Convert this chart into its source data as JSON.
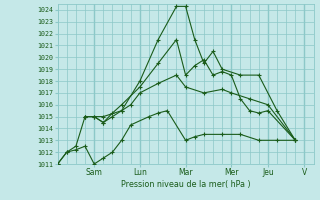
{
  "xlabel": "Pression niveau de la mer( hPa )",
  "bg_color": "#c5e8e8",
  "grid_color": "#8cc8c8",
  "line_color": "#1a5c1a",
  "ylim": [
    1011,
    1024.5
  ],
  "yticks": [
    1011,
    1012,
    1013,
    1014,
    1015,
    1016,
    1017,
    1018,
    1019,
    1020,
    1021,
    1022,
    1023,
    1024
  ],
  "xlim": [
    0,
    14
  ],
  "day_ticks": [
    2.0,
    4.5,
    7.0,
    9.5,
    11.5,
    13.5
  ],
  "day_labels": [
    "Sam",
    "Lun",
    "Mar",
    "Mer",
    "Jeu",
    "V"
  ],
  "vlines": [
    2.0,
    4.5,
    7.0,
    9.5,
    11.5,
    13.5
  ],
  "lines": [
    {
      "x": [
        0.0,
        0.5,
        1.0,
        1.5,
        2.5,
        3.5,
        4.5,
        5.5,
        6.5,
        7.0,
        7.5,
        8.0,
        8.5,
        9.0,
        10.0,
        11.0,
        12.0,
        13.0
      ],
      "y": [
        1011.0,
        1012.0,
        1012.5,
        1015.0,
        1015.0,
        1015.5,
        1018.0,
        1021.5,
        1024.3,
        1024.3,
        1021.5,
        1019.5,
        1020.5,
        1019.0,
        1018.5,
        1018.5,
        1015.5,
        1013.0
      ]
    },
    {
      "x": [
        0.0,
        0.5,
        1.0,
        1.5,
        2.0,
        2.5,
        3.0,
        3.5,
        4.0,
        5.0,
        5.5,
        6.0,
        7.0,
        7.5,
        8.0,
        9.0,
        10.0,
        11.0,
        12.0,
        13.0
      ],
      "y": [
        1011.0,
        1012.0,
        1012.2,
        1012.5,
        1011.0,
        1011.5,
        1012.0,
        1013.0,
        1014.3,
        1015.0,
        1015.3,
        1015.5,
        1013.0,
        1013.3,
        1013.5,
        1013.5,
        1013.5,
        1013.0,
        1013.0,
        1013.0
      ]
    },
    {
      "x": [
        1.5,
        2.0,
        2.5,
        3.0,
        3.5,
        4.0,
        4.5,
        5.5,
        6.5,
        7.0,
        8.0,
        9.0,
        9.5,
        10.5,
        11.5,
        13.0
      ],
      "y": [
        1015.0,
        1015.0,
        1014.5,
        1015.0,
        1015.5,
        1016.0,
        1017.0,
        1017.8,
        1018.5,
        1017.5,
        1017.0,
        1017.3,
        1017.0,
        1016.5,
        1016.0,
        1013.0
      ]
    },
    {
      "x": [
        1.5,
        2.0,
        2.5,
        3.0,
        3.5,
        4.5,
        5.5,
        6.5,
        7.0,
        7.5,
        8.0,
        8.5,
        9.0,
        9.5,
        10.0,
        10.5,
        11.0,
        11.5,
        13.0
      ],
      "y": [
        1015.0,
        1015.0,
        1014.5,
        1015.3,
        1016.0,
        1017.5,
        1019.5,
        1021.5,
        1018.5,
        1019.3,
        1019.8,
        1018.5,
        1018.8,
        1018.5,
        1016.5,
        1015.5,
        1015.3,
        1015.5,
        1013.0
      ]
    }
  ]
}
